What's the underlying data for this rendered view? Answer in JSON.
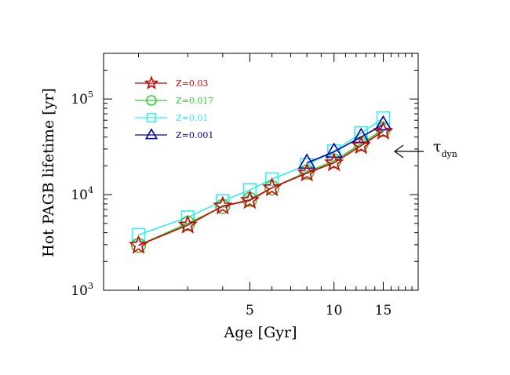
{
  "chart_data": {
    "type": "line",
    "xlabel": "Age [Gyr]",
    "ylabel": "Hot PAGB lifetime [yr]",
    "xscale": "log",
    "yscale": "log",
    "xlim": [
      1.5,
      20
    ],
    "ylim": [
      1000,
      300000
    ],
    "x_ticks": [
      5,
      10,
      15
    ],
    "y_ticks": [
      1000,
      10000,
      100000
    ],
    "y_tick_labels": [
      {
        "base": "10",
        "exp": "3"
      },
      {
        "base": "10",
        "exp": "4"
      },
      {
        "base": "10",
        "exp": "5"
      }
    ],
    "legend_position": "top-left",
    "grid": false,
    "series": [
      {
        "name": "Z=0.03",
        "color": "#cc0000",
        "marker": "star",
        "x": [
          2,
          3,
          4,
          5,
          6,
          8,
          10,
          12.5,
          15
        ],
        "y": [
          2950,
          4800,
          7600,
          8700,
          11800,
          16800,
          21500,
          32500,
          46000
        ]
      },
      {
        "name": "Z=0.017",
        "color": "#33cc33",
        "marker": "circle",
        "x": [
          2,
          3,
          4,
          5,
          6,
          8,
          10,
          12.5,
          15
        ],
        "y": [
          2950,
          5000,
          7500,
          8900,
          11800,
          17200,
          22500,
          34000,
          48000
        ]
      },
      {
        "name": "Z=0.01",
        "color": "#33eeee",
        "marker": "square",
        "x": [
          2,
          3,
          4,
          5,
          6,
          8,
          10,
          12.5,
          15
        ],
        "y": [
          3800,
          5800,
          8600,
          11200,
          14500,
          20500,
          28500,
          44000,
          63000
        ]
      },
      {
        "name": "Z=0.001",
        "color": "#0000aa",
        "marker": "triangle",
        "x": [
          8,
          10,
          12.5,
          15
        ],
        "y": [
          21500,
          28000,
          40000,
          54000
        ]
      }
    ],
    "annotations": [
      {
        "symbol": "τ",
        "subscript": "dyn",
        "arrow": "left",
        "y": 30000
      }
    ]
  }
}
